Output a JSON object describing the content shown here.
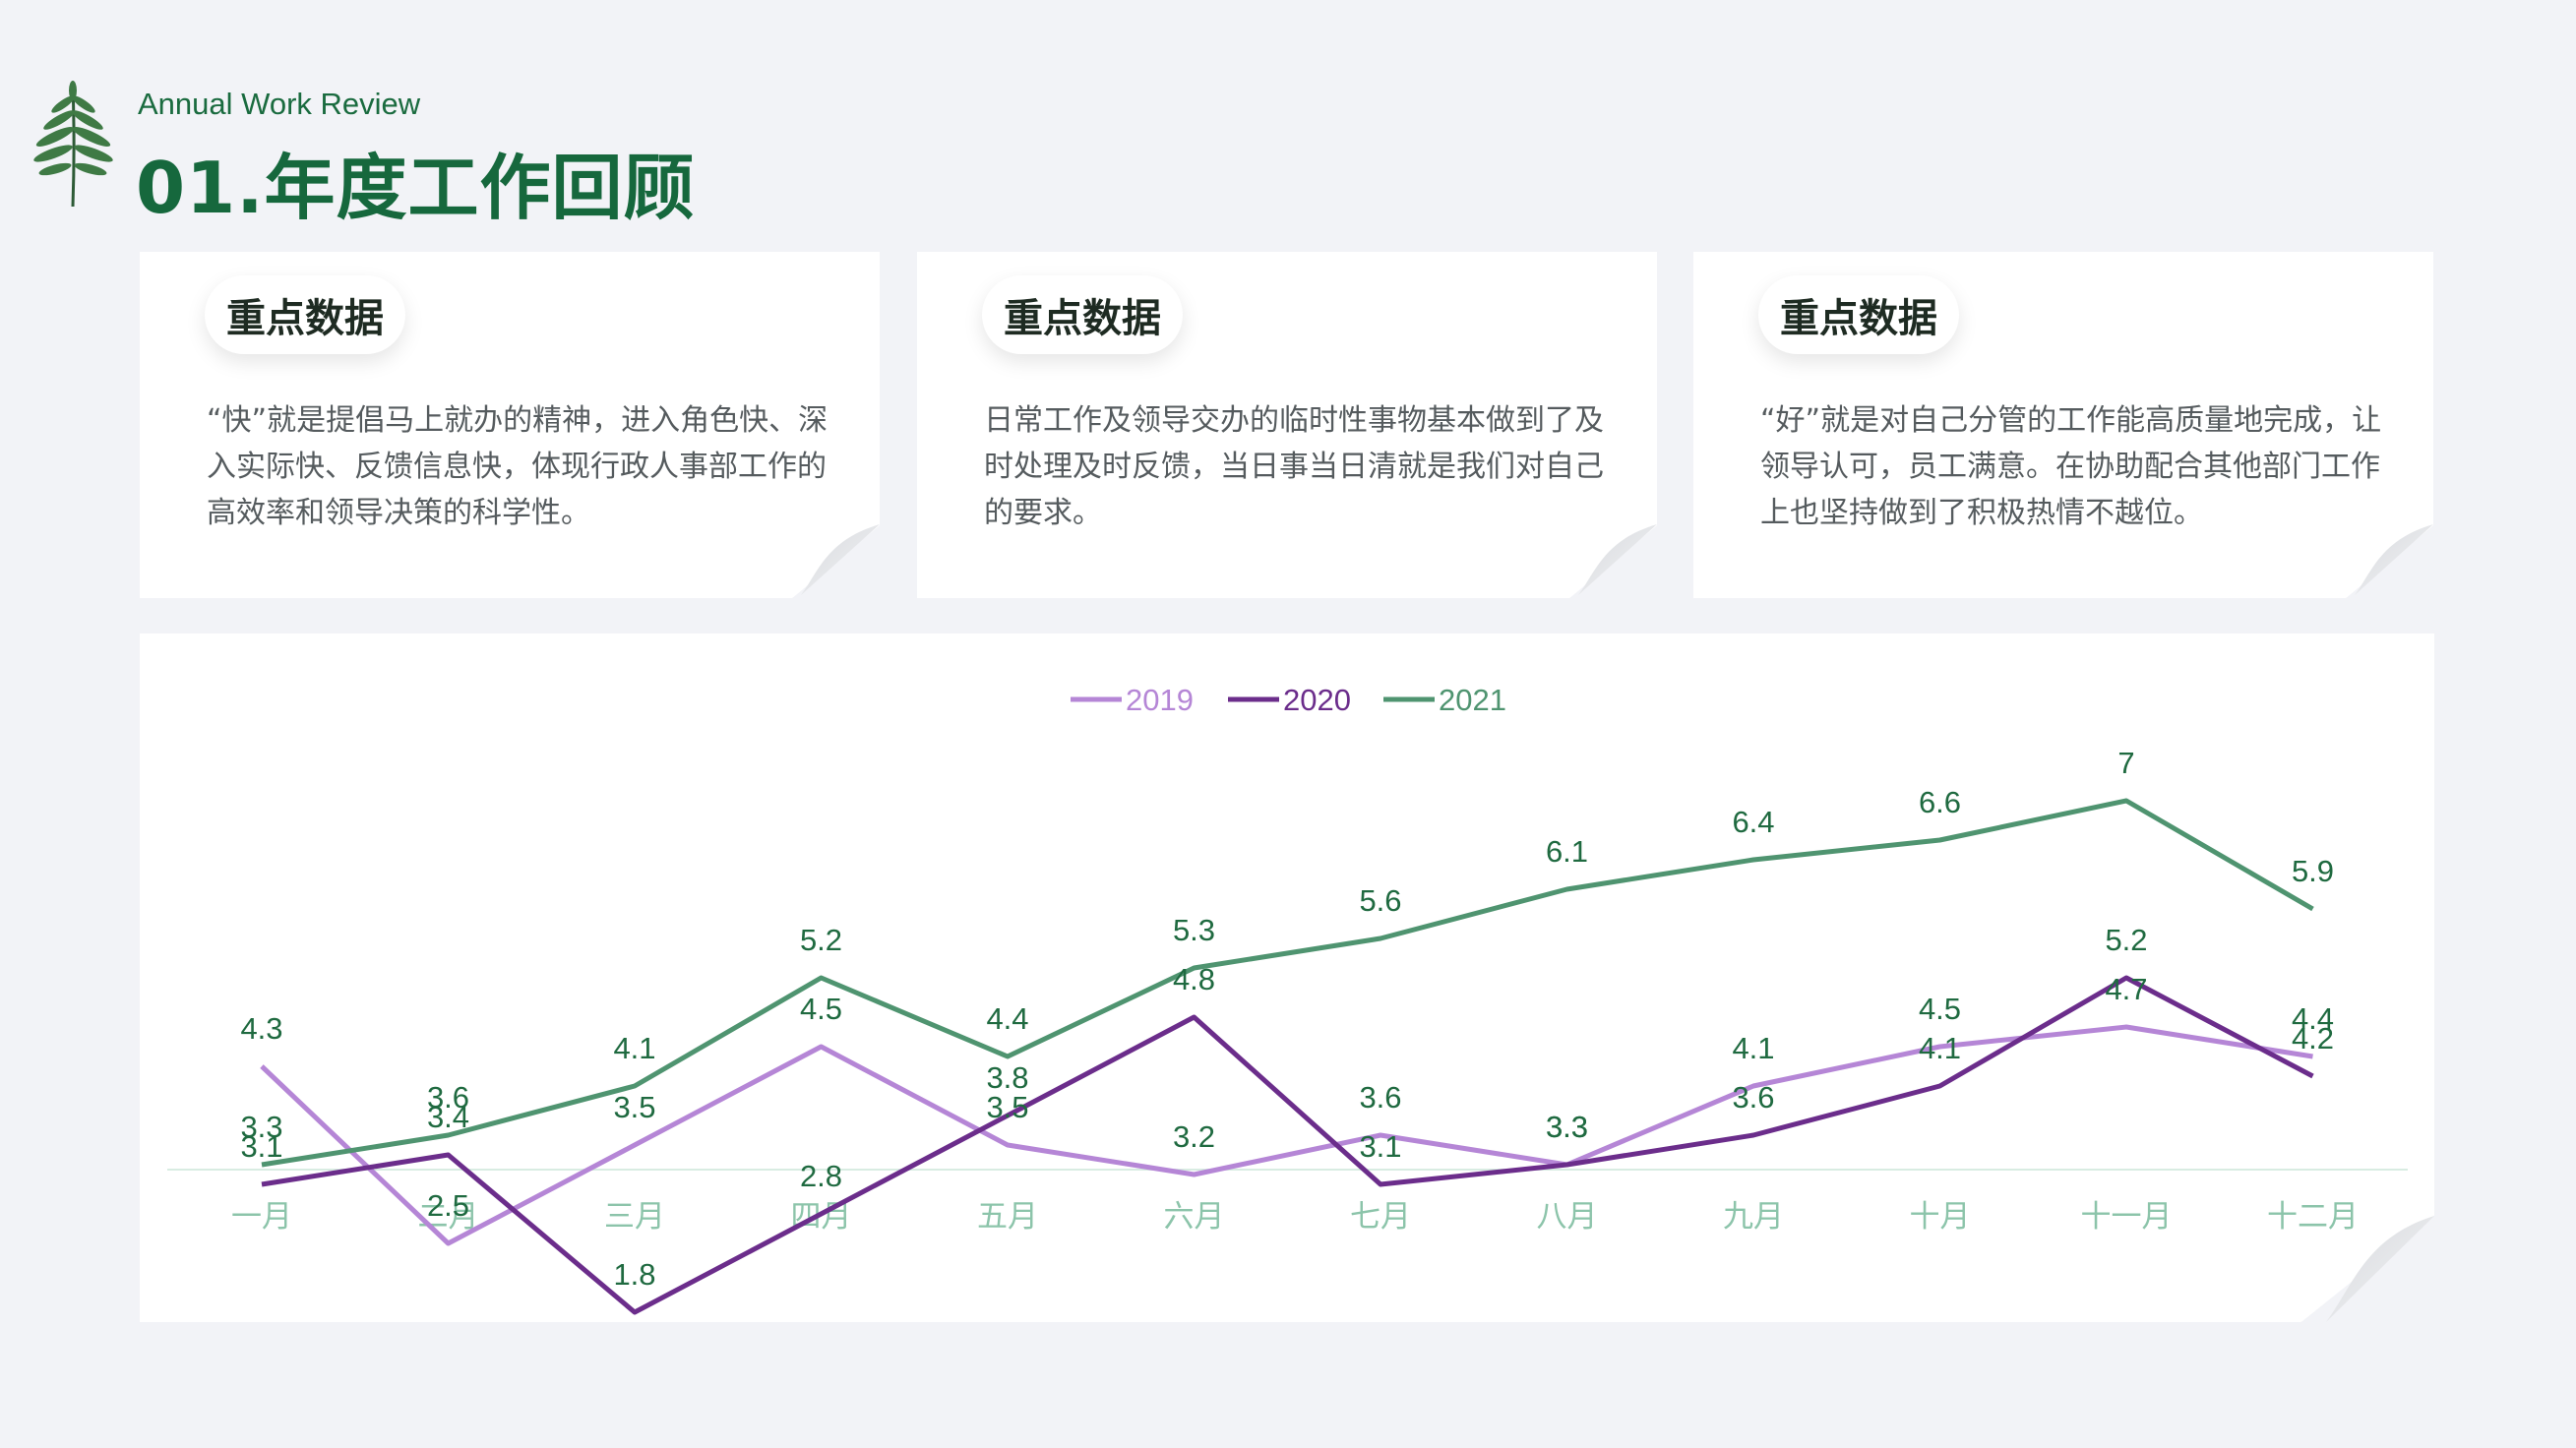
{
  "header": {
    "subtitle": "Annual Work Review",
    "title": "01.年度工作回顾"
  },
  "cards": [
    {
      "label": "重点数据",
      "text": "“快”就是提倡马上就办的精神，进入角色快、深入实际快、反馈信息快，体现行政人事部工作的高效率和领导决策的科学性。"
    },
    {
      "label": "重点数据",
      "text": "日常工作及领导交办的临时性事物基本做到了及时处理及时反馈，当日事当日清就是我们对自己的要求。"
    },
    {
      "label": "重点数据",
      "text": "“好”就是对自己分管的工作能高质量地完成，让领导认可，员工满意。在协助配合其他部门工作上也坚持做到了积极热情不越位。"
    }
  ],
  "colors": {
    "brand": "#16683d",
    "series_2019": "#b586d6",
    "series_2020": "#6b2d8b",
    "series_2021": "#4f9470",
    "category_label": "#8cc4aa",
    "value_label": "#1f6a40"
  },
  "icons": {
    "logo": "fern-leaf-icon",
    "card_corner": "page-curl-icon"
  },
  "chart_data": {
    "type": "line",
    "categories": [
      "一月",
      "二月",
      "三月",
      "四月",
      "五月",
      "六月",
      "七月",
      "八月",
      "九月",
      "十月",
      "十一月",
      "十二月"
    ],
    "series": [
      {
        "name": "2019",
        "values": [
          4.3,
          2.5,
          3.5,
          4.5,
          3.5,
          3.2,
          3.6,
          3.3,
          4.1,
          4.5,
          4.7,
          4.4
        ]
      },
      {
        "name": "2020",
        "values": [
          3.1,
          3.4,
          1.8,
          2.8,
          3.8,
          4.8,
          3.1,
          3.3,
          3.6,
          4.1,
          5.2,
          4.2
        ]
      },
      {
        "name": "2021",
        "values": [
          3.3,
          3.6,
          4.1,
          5.2,
          4.4,
          5.3,
          5.6,
          6.1,
          6.4,
          6.6,
          7.0,
          5.9
        ]
      }
    ],
    "data_labels": true,
    "legend": "top-center",
    "ylim": [
      0,
      8
    ],
    "grid": false
  }
}
